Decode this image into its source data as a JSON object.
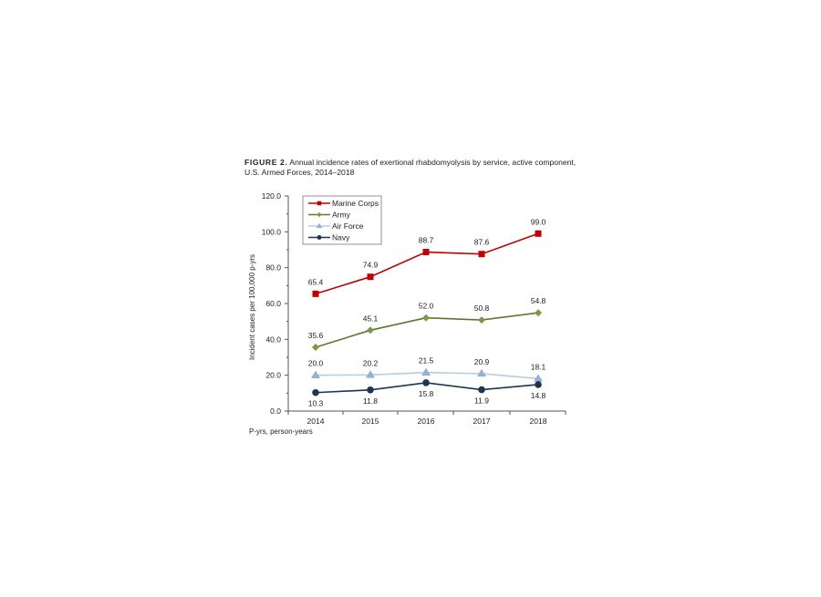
{
  "figure": {
    "label": "FIGURE 2.",
    "caption": "Annual incidence rates of exertional rhabdomyolysis by service, active component, U.S. Armed Forces, 2014–2018",
    "footnote": "P-yrs, person-years"
  },
  "chart_data": {
    "type": "line",
    "title": "Annual incidence rates of exertional rhabdomyolysis by service, active component, U.S. Armed Forces, 2014–2018",
    "xlabel": "",
    "ylabel": "Incident cases per 100,000 p-yrs",
    "categories": [
      "2014",
      "2015",
      "2016",
      "2017",
      "2018"
    ],
    "ylim": [
      0,
      120
    ],
    "yticks": [
      "0.0",
      "20.0",
      "40.0",
      "60.0",
      "80.0",
      "100.0",
      "120.0"
    ],
    "grid": false,
    "legend": "top-left",
    "series": [
      {
        "name": "Marine Corps",
        "values": [
          65.4,
          74.9,
          88.7,
          87.6,
          99.0
        ],
        "labels": [
          "65.4",
          "74.9",
          "88.7",
          "87.6",
          "99.0"
        ],
        "color": "#c00000",
        "marker": "square",
        "label_pos": "above"
      },
      {
        "name": "Army",
        "values": [
          35.6,
          45.1,
          52.0,
          50.8,
          54.8
        ],
        "labels": [
          "35.6",
          "45.1",
          "52.0",
          "50.8",
          "54.8"
        ],
        "color": "#5f7530",
        "marker": "diamond",
        "marker_color": "#7a9a42",
        "label_pos": "above"
      },
      {
        "name": "Air Force",
        "values": [
          20.0,
          20.2,
          21.5,
          20.9,
          18.1
        ],
        "labels": [
          "20.0",
          "20.2",
          "21.5",
          "20.9",
          "18.1"
        ],
        "color": "#b8cce4",
        "marker": "triangle",
        "marker_color": "#95b3d7",
        "label_pos": "above"
      },
      {
        "name": "Navy",
        "values": [
          10.3,
          11.8,
          15.8,
          11.9,
          14.8
        ],
        "labels": [
          "10.3",
          "11.8",
          "15.8",
          "11.9",
          "14.8"
        ],
        "color": "#1f3451",
        "marker": "circle",
        "label_pos": "below"
      }
    ]
  }
}
